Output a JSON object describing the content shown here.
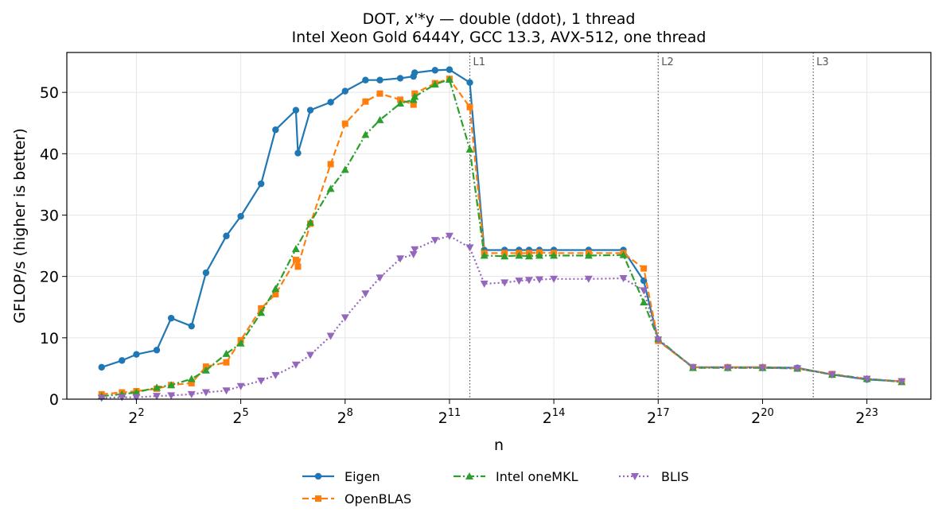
{
  "chart_data": {
    "type": "line",
    "title": "DOT, x'*y — double (ddot), 1 thread",
    "subtitle": "Intel Xeon Gold 6444Y, GCC 13.3, AVX-512, one thread",
    "xlabel": "n",
    "ylabel": "GFLOP/s (higher is better)",
    "x_scale": "log2",
    "xlim": [
      1.0,
      30000000
    ],
    "ylim": [
      0,
      56.5
    ],
    "x_ticks": [
      {
        "value": 4,
        "base": "2",
        "exp": "2"
      },
      {
        "value": 32,
        "base": "2",
        "exp": "5"
      },
      {
        "value": 256,
        "base": "2",
        "exp": "8"
      },
      {
        "value": 2048,
        "base": "2",
        "exp": "11"
      },
      {
        "value": 16384,
        "base": "2",
        "exp": "14"
      },
      {
        "value": 131072,
        "base": "2",
        "exp": "17"
      },
      {
        "value": 1048576,
        "base": "2",
        "exp": "20"
      },
      {
        "value": 8388608,
        "base": "2",
        "exp": "23"
      }
    ],
    "y_ticks": [
      0,
      10,
      20,
      30,
      40,
      50
    ],
    "grid": true,
    "legend_position": "bottom-center",
    "cache_lines": [
      {
        "label": "L1",
        "x": 3072
      },
      {
        "label": "L2",
        "x": 131072
      },
      {
        "label": "L3",
        "x": 2880000
      }
    ],
    "series": [
      {
        "name": "Eigen",
        "color": "#1f77b4",
        "marker": "circle",
        "dash": "solid",
        "points": [
          [
            2,
            5.2
          ],
          [
            3,
            6.3
          ],
          [
            4,
            7.3
          ],
          [
            6,
            8.0
          ],
          [
            8,
            13.2
          ],
          [
            12,
            11.9
          ],
          [
            16,
            20.6
          ],
          [
            24,
            26.6
          ],
          [
            32,
            29.8
          ],
          [
            48,
            35.1
          ],
          [
            64,
            43.9
          ],
          [
            96,
            47.1
          ],
          [
            100,
            40.1
          ],
          [
            128,
            47.1
          ],
          [
            192,
            48.4
          ],
          [
            256,
            50.2
          ],
          [
            384,
            52.0
          ],
          [
            512,
            52.0
          ],
          [
            768,
            52.3
          ],
          [
            1000,
            52.6
          ],
          [
            1024,
            53.2
          ],
          [
            1536,
            53.6
          ],
          [
            2048,
            53.7
          ],
          [
            3072,
            51.6
          ],
          [
            4096,
            24.3
          ],
          [
            6144,
            24.3
          ],
          [
            8192,
            24.3
          ],
          [
            10000,
            24.3
          ],
          [
            12288,
            24.3
          ],
          [
            16384,
            24.3
          ],
          [
            32768,
            24.3
          ],
          [
            65536,
            24.3
          ],
          [
            98304,
            19.3
          ],
          [
            131072,
            9.6
          ],
          [
            262144,
            5.2
          ],
          [
            524288,
            5.2
          ],
          [
            1048576,
            5.2
          ],
          [
            2097152,
            5.1
          ],
          [
            4194304,
            4.0
          ],
          [
            8388608,
            3.2
          ],
          [
            16777216,
            2.9
          ]
        ]
      },
      {
        "name": "OpenBLAS",
        "color": "#ff7f0e",
        "marker": "square",
        "dash": "dashed",
        "points": [
          [
            2,
            0.8
          ],
          [
            3,
            1.1
          ],
          [
            4,
            1.3
          ],
          [
            6,
            1.7
          ],
          [
            8,
            2.3
          ],
          [
            12,
            2.6
          ],
          [
            16,
            5.3
          ],
          [
            24,
            6.0
          ],
          [
            32,
            9.6
          ],
          [
            48,
            14.8
          ],
          [
            64,
            17.1
          ],
          [
            96,
            22.7
          ],
          [
            100,
            21.6
          ],
          [
            128,
            28.6
          ],
          [
            192,
            38.3
          ],
          [
            256,
            44.9
          ],
          [
            384,
            48.5
          ],
          [
            512,
            49.8
          ],
          [
            768,
            48.8
          ],
          [
            1000,
            48.0
          ],
          [
            1024,
            49.8
          ],
          [
            1536,
            51.5
          ],
          [
            2048,
            52.2
          ],
          [
            3072,
            47.6
          ],
          [
            4096,
            23.8
          ],
          [
            6144,
            23.8
          ],
          [
            8192,
            23.8
          ],
          [
            10000,
            23.8
          ],
          [
            12288,
            23.9
          ],
          [
            16384,
            23.8
          ],
          [
            32768,
            23.8
          ],
          [
            65536,
            23.8
          ],
          [
            98304,
            21.3
          ],
          [
            131072,
            9.5
          ],
          [
            262144,
            5.2
          ],
          [
            524288,
            5.2
          ],
          [
            1048576,
            5.2
          ],
          [
            2097152,
            5.0
          ],
          [
            4194304,
            4.1
          ],
          [
            8388608,
            3.3
          ],
          [
            16777216,
            2.9
          ]
        ]
      },
      {
        "name": "Intel oneMKL",
        "color": "#2ca02c",
        "marker": "triangle-up",
        "dash": "dashdot",
        "points": [
          [
            2,
            0.5
          ],
          [
            3,
            0.8
          ],
          [
            4,
            1.1
          ],
          [
            6,
            1.9
          ],
          [
            8,
            2.3
          ],
          [
            12,
            3.3
          ],
          [
            16,
            4.7
          ],
          [
            24,
            7.4
          ],
          [
            32,
            9.1
          ],
          [
            48,
            14.1
          ],
          [
            64,
            18.0
          ],
          [
            96,
            24.5
          ],
          [
            128,
            28.8
          ],
          [
            192,
            34.3
          ],
          [
            256,
            37.4
          ],
          [
            384,
            43.1
          ],
          [
            512,
            45.5
          ],
          [
            768,
            48.2
          ],
          [
            1000,
            48.8
          ],
          [
            1024,
            49.3
          ],
          [
            1536,
            51.3
          ],
          [
            2048,
            52.1
          ],
          [
            3072,
            40.7
          ],
          [
            4096,
            23.4
          ],
          [
            6144,
            23.3
          ],
          [
            8192,
            23.4
          ],
          [
            10000,
            23.3
          ],
          [
            12288,
            23.4
          ],
          [
            16384,
            23.4
          ],
          [
            32768,
            23.4
          ],
          [
            65536,
            23.5
          ],
          [
            98304,
            15.8
          ],
          [
            131072,
            9.8
          ],
          [
            262144,
            5.1
          ],
          [
            524288,
            5.1
          ],
          [
            1048576,
            5.1
          ],
          [
            2097152,
            5.0
          ],
          [
            4194304,
            4.0
          ],
          [
            8388608,
            3.3
          ],
          [
            16777216,
            2.8
          ]
        ]
      },
      {
        "name": "BLIS",
        "color": "#9467bd",
        "marker": "triangle-down",
        "dash": "dotted",
        "points": [
          [
            2,
            0.2
          ],
          [
            3,
            0.3
          ],
          [
            4,
            0.3
          ],
          [
            6,
            0.5
          ],
          [
            8,
            0.6
          ],
          [
            12,
            0.8
          ],
          [
            16,
            1.1
          ],
          [
            24,
            1.4
          ],
          [
            32,
            2.1
          ],
          [
            48,
            3.0
          ],
          [
            64,
            3.9
          ],
          [
            96,
            5.6
          ],
          [
            128,
            7.2
          ],
          [
            192,
            10.3
          ],
          [
            256,
            13.3
          ],
          [
            384,
            17.2
          ],
          [
            512,
            19.8
          ],
          [
            768,
            22.9
          ],
          [
            1000,
            23.6
          ],
          [
            1024,
            24.4
          ],
          [
            1536,
            25.9
          ],
          [
            2048,
            26.6
          ],
          [
            3072,
            24.7
          ],
          [
            4096,
            18.8
          ],
          [
            6144,
            19.0
          ],
          [
            8192,
            19.3
          ],
          [
            10000,
            19.4
          ],
          [
            12288,
            19.5
          ],
          [
            16384,
            19.6
          ],
          [
            32768,
            19.6
          ],
          [
            65536,
            19.7
          ],
          [
            98304,
            17.7
          ],
          [
            131072,
            9.7
          ],
          [
            262144,
            5.2
          ],
          [
            524288,
            5.1
          ],
          [
            1048576,
            5.1
          ],
          [
            2097152,
            5.0
          ],
          [
            4194304,
            4.0
          ],
          [
            8388608,
            3.3
          ],
          [
            16777216,
            2.9
          ]
        ]
      }
    ]
  }
}
